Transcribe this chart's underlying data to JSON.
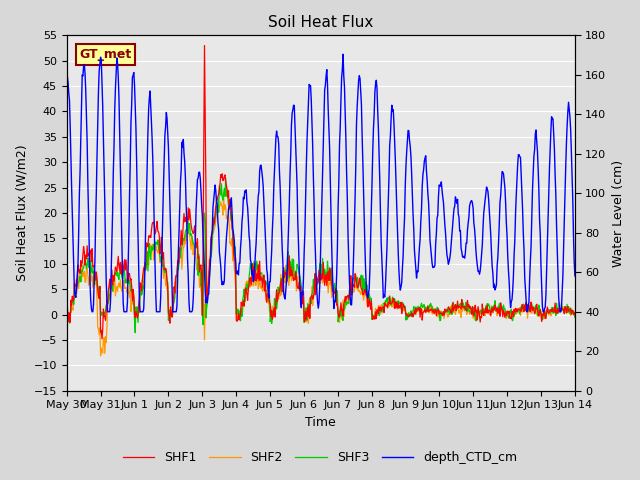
{
  "title": "Soil Heat Flux",
  "xlabel": "Time",
  "ylabel_left": "Soil Heat Flux (W/m2)",
  "ylabel_right": "Water Level (cm)",
  "ylim_left": [
    -15,
    55
  ],
  "ylim_right": [
    0,
    180
  ],
  "yticks_left": [
    -15,
    -10,
    -5,
    0,
    5,
    10,
    15,
    20,
    25,
    30,
    35,
    40,
    45,
    50,
    55
  ],
  "yticks_right": [
    0,
    20,
    40,
    60,
    80,
    100,
    120,
    140,
    160,
    180
  ],
  "xtick_labels": [
    "May 30",
    "May 31",
    "Jun 1",
    "Jun 2",
    "Jun 3",
    "Jun 4",
    "Jun 5",
    "Jun 6",
    "Jun 7",
    "Jun 8",
    "Jun 9",
    "Jun 10",
    "Jun 11",
    "Jun 12",
    "Jun 13",
    "Jun 14"
  ],
  "colors": {
    "SHF1": "#ff0000",
    "SHF2": "#ff9900",
    "SHF3": "#00cc00",
    "depth_CTD_cm": "#0000ff"
  },
  "annotation_text": "GT_met",
  "annotation_color": "#8B0000",
  "annotation_bg": "#ffff99",
  "fig_bg": "#d8d8d8",
  "plot_bg": "#e8e8e8",
  "grid_color": "#ffffff",
  "title_fontsize": 11,
  "axis_fontsize": 9,
  "tick_fontsize": 8,
  "legend_fontsize": 9,
  "linewidth": 0.9
}
